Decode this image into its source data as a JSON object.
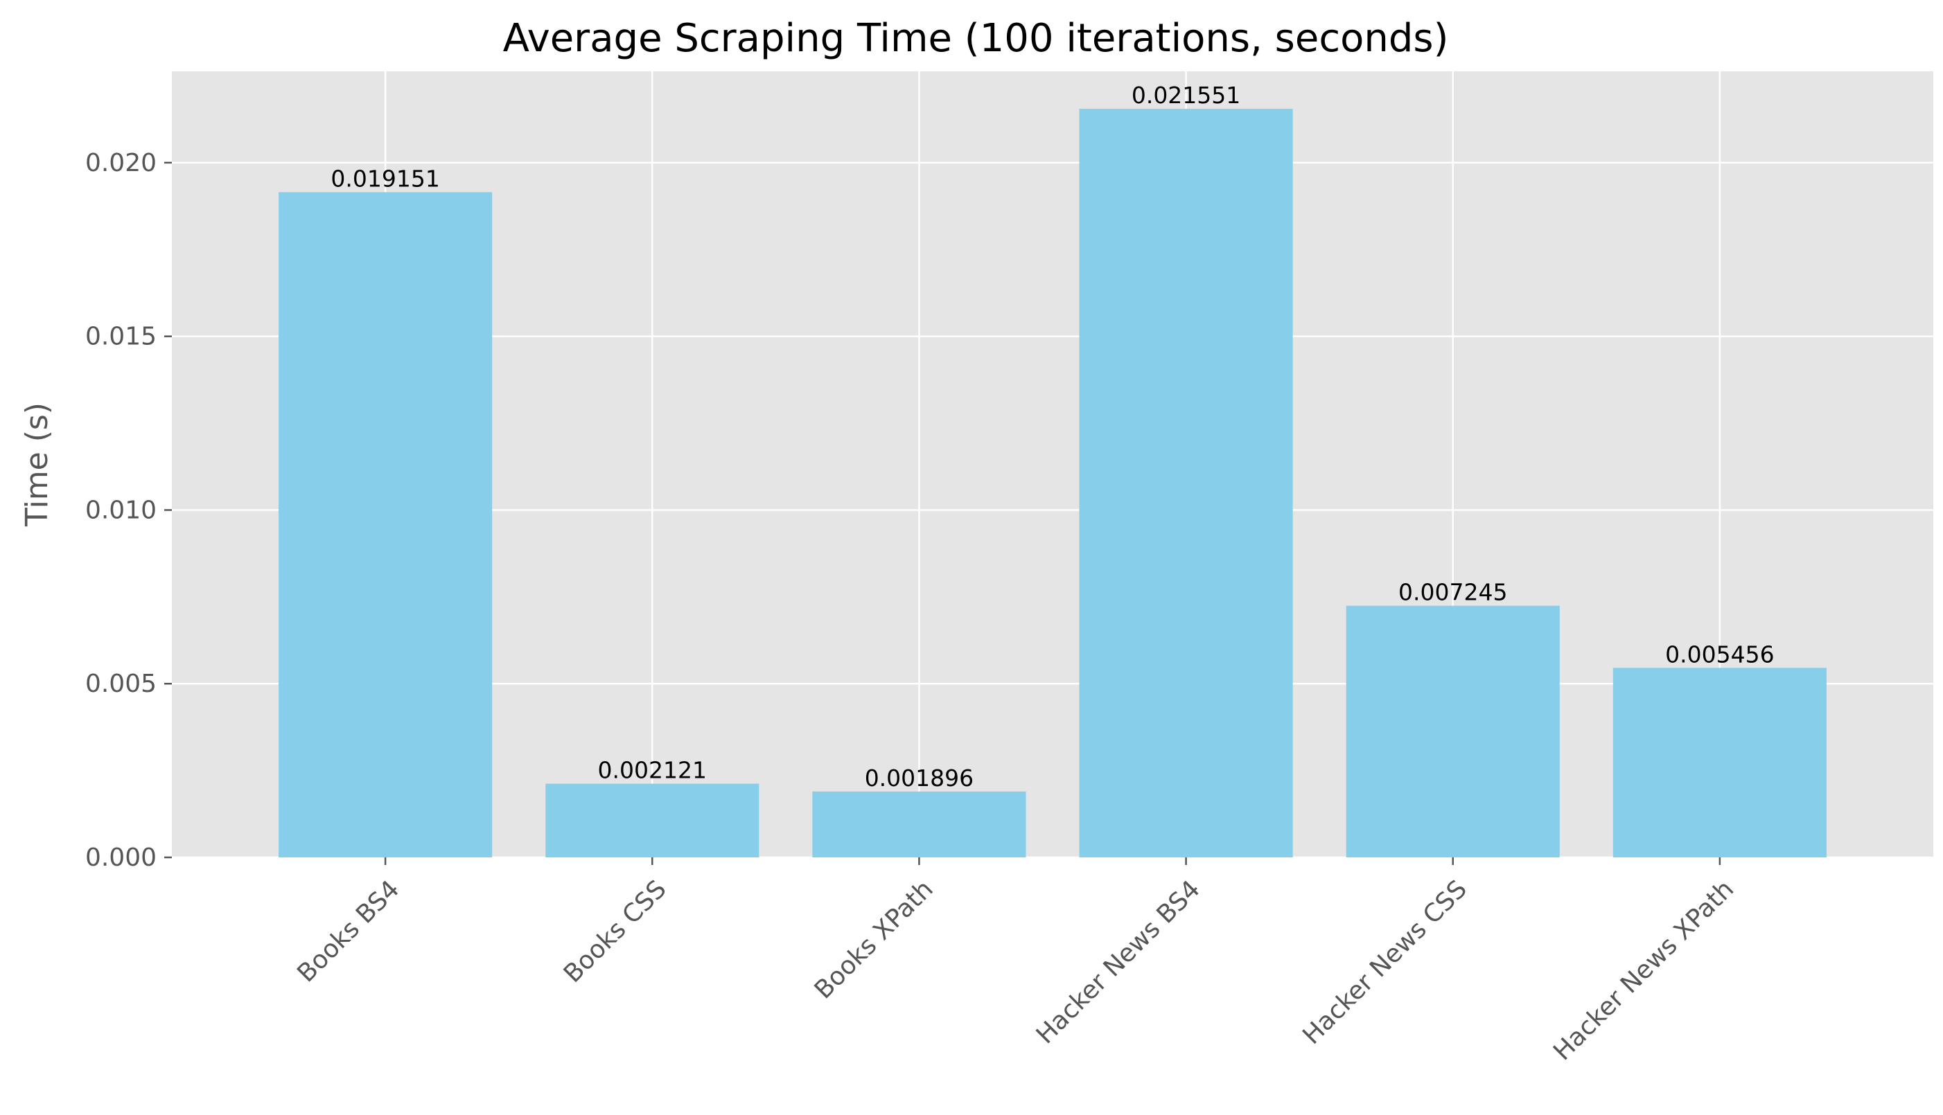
{
  "chart_data": {
    "type": "bar",
    "title": "Average Scraping Time (100 iterations, seconds)",
    "xlabel": "",
    "ylabel": "Time (s)",
    "categories": [
      "Books BS4",
      "Books CSS",
      "Books XPath",
      "Hacker News BS4",
      "Hacker News CSS",
      "Hacker News XPath"
    ],
    "values": [
      0.019151,
      0.002121,
      0.001896,
      0.021551,
      0.007245,
      0.005456
    ],
    "value_labels": [
      "0.019151",
      "0.002121",
      "0.001896",
      "0.021551",
      "0.007245",
      "0.005456"
    ],
    "ylim": [
      0,
      0.02263
    ],
    "yticks": [
      0.0,
      0.005,
      0.01,
      0.015,
      0.02
    ],
    "ytick_labels": [
      "0.000",
      "0.005",
      "0.010",
      "0.015",
      "0.020"
    ],
    "grid": true,
    "legend": "none",
    "colors": {
      "bar": "#87CEEB",
      "plot_background": "#E5E5E5",
      "grid": "#FFFFFF",
      "tick_text": "#555555",
      "tick_mark": "#555555",
      "title_text": "#000000",
      "data_label_text": "#000000"
    }
  }
}
